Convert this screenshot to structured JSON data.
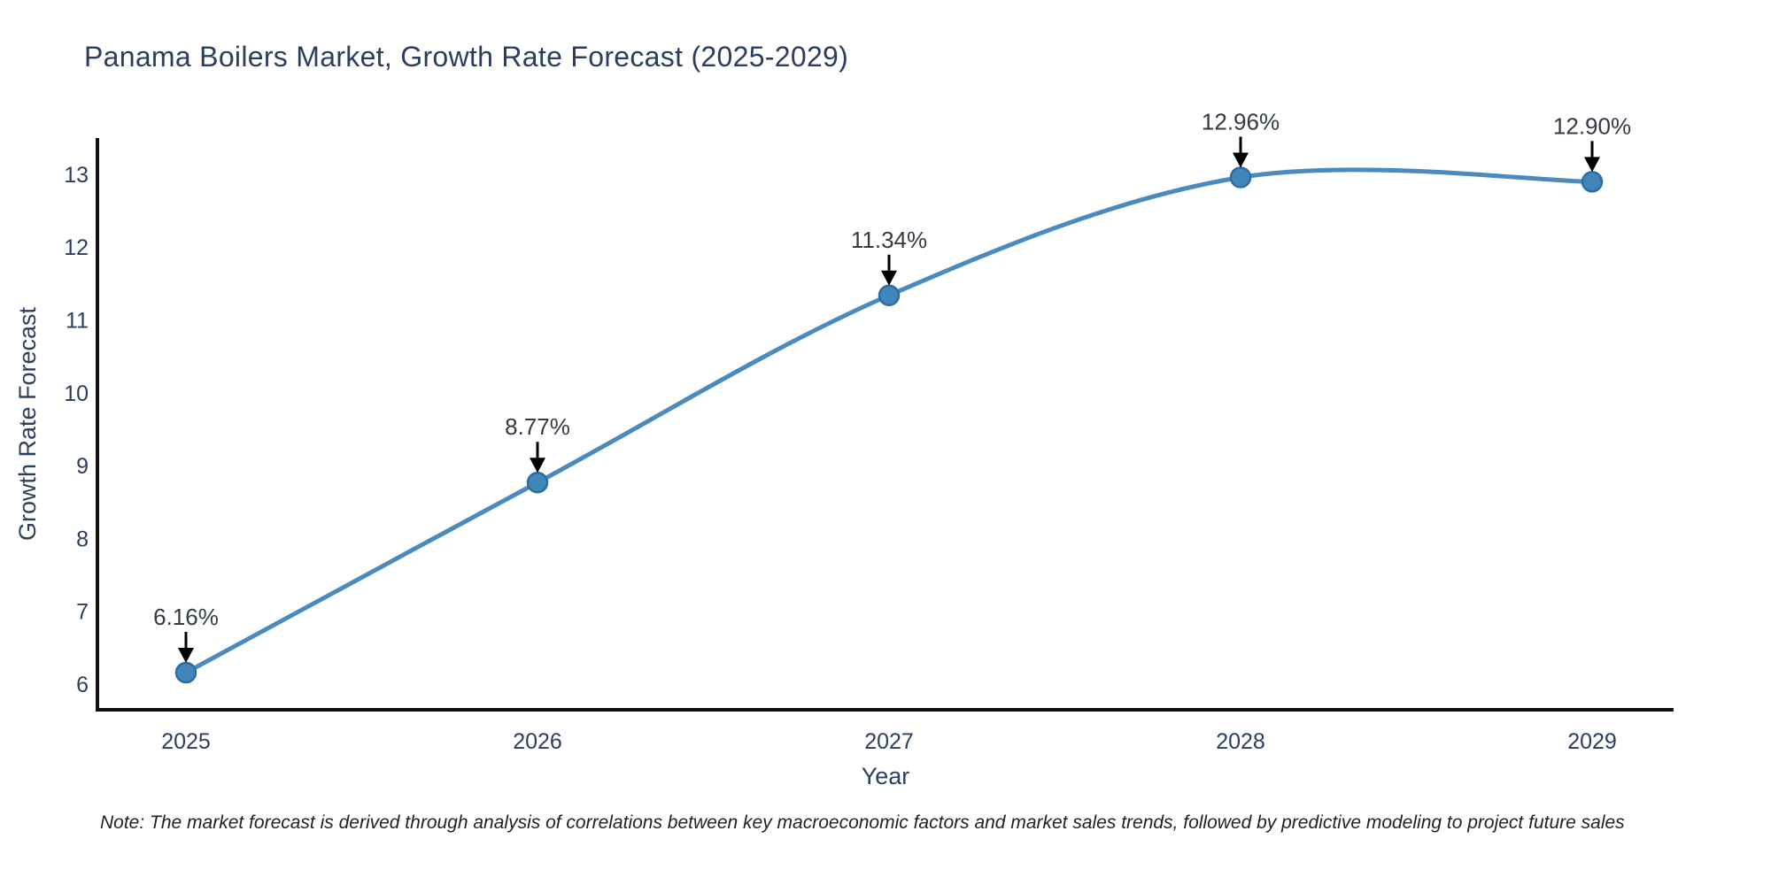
{
  "chart_data": {
    "type": "line",
    "title": "Panama Boilers Market, Growth Rate Forecast (2025-2029)",
    "xlabel": "Year",
    "ylabel": "Growth Rate Forecast",
    "categories": [
      "2025",
      "2026",
      "2027",
      "2028",
      "2029"
    ],
    "series": [
      {
        "name": "Growth Rate Forecast",
        "values": [
          6.16,
          8.77,
          11.34,
          12.96,
          12.9
        ],
        "point_labels": [
          "6.16%",
          "8.77%",
          "11.34%",
          "12.96%",
          "12.90%"
        ]
      }
    ],
    "yticks": [
      6,
      7,
      8,
      9,
      10,
      11,
      12,
      13
    ],
    "ylim": [
      5.65,
      13.5
    ],
    "grid": false,
    "legend_position": "none",
    "line_shape": "spline",
    "colors": {
      "line": "#4a8abf",
      "marker_fill": "#4186b8",
      "marker_edge": "#2d6da3",
      "axis_line": "#111111",
      "tick_text": "#2a3f5f",
      "axis_title_text": "#2a3f5f",
      "annotation_text": "#333a45",
      "annotation_arrow": "#000000",
      "title_text": "#2a3f5f",
      "background": "#ffffff"
    }
  },
  "note": "Note: The market forecast is derived through analysis of correlations between key macroeconomic factors and market sales trends, followed by predictive modeling to project future sales"
}
